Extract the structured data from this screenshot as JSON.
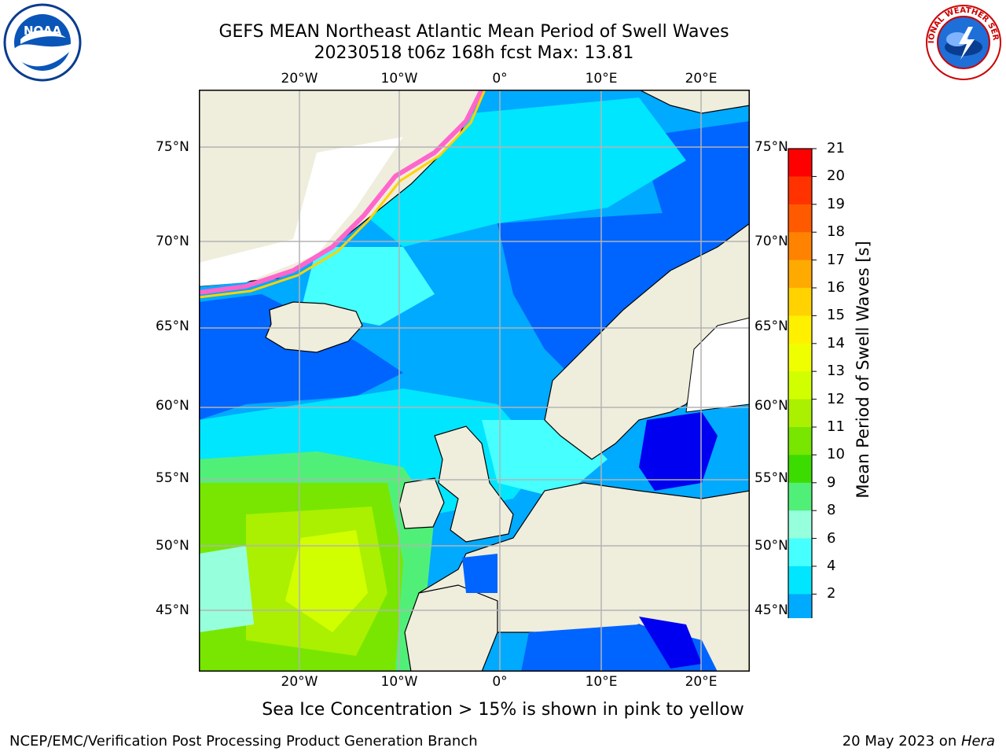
{
  "header": {
    "title_line1": "GEFS MEAN Northeast Atlantic Mean Period of Swell Waves",
    "title_line2": "20230518 t06z 168h fcst   Max: 13.81"
  },
  "map": {
    "lon_ticks": [
      "20°W",
      "10°W",
      "0°",
      "10°E",
      "20°E"
    ],
    "lat_ticks": [
      "75°N",
      "70°N",
      "65°N",
      "60°N",
      "55°N",
      "50°N",
      "45°N"
    ],
    "colors": {
      "land": "#efeddc",
      "ice_free_white": "#ffffff",
      "grid": "#b3b3b3",
      "coast": "#000000"
    }
  },
  "colorbar": {
    "title": "Mean Period of Swell Waves [s]",
    "labels": [
      "21",
      "20",
      "19",
      "18",
      "17",
      "16",
      "15",
      "14",
      "13",
      "12",
      "11",
      "10",
      "9",
      "8",
      "6",
      "4",
      "2"
    ],
    "colors": [
      "#ff0000",
      "#ff3200",
      "#ff5a00",
      "#ff8200",
      "#ffaa00",
      "#ffd200",
      "#fff000",
      "#f0ff00",
      "#d2ff00",
      "#aaf000",
      "#78e600",
      "#3cdc00",
      "#50f078",
      "#96ffdc",
      "#46ffff",
      "#00e6ff",
      "#00aaff",
      "#0064ff",
      "#0000f0"
    ]
  },
  "note": "Sea Ice Concentration > 15% is shown in pink to yellow",
  "footer": {
    "left": "NCEP/EMC/Verification Post Processing Product Generation Branch",
    "right_prefix": "20 May 2023 on ",
    "right_italic": "Hera"
  },
  "logos": {
    "noaa": "NOAA",
    "nws": "NATIONAL WEATHER SERVICE"
  }
}
